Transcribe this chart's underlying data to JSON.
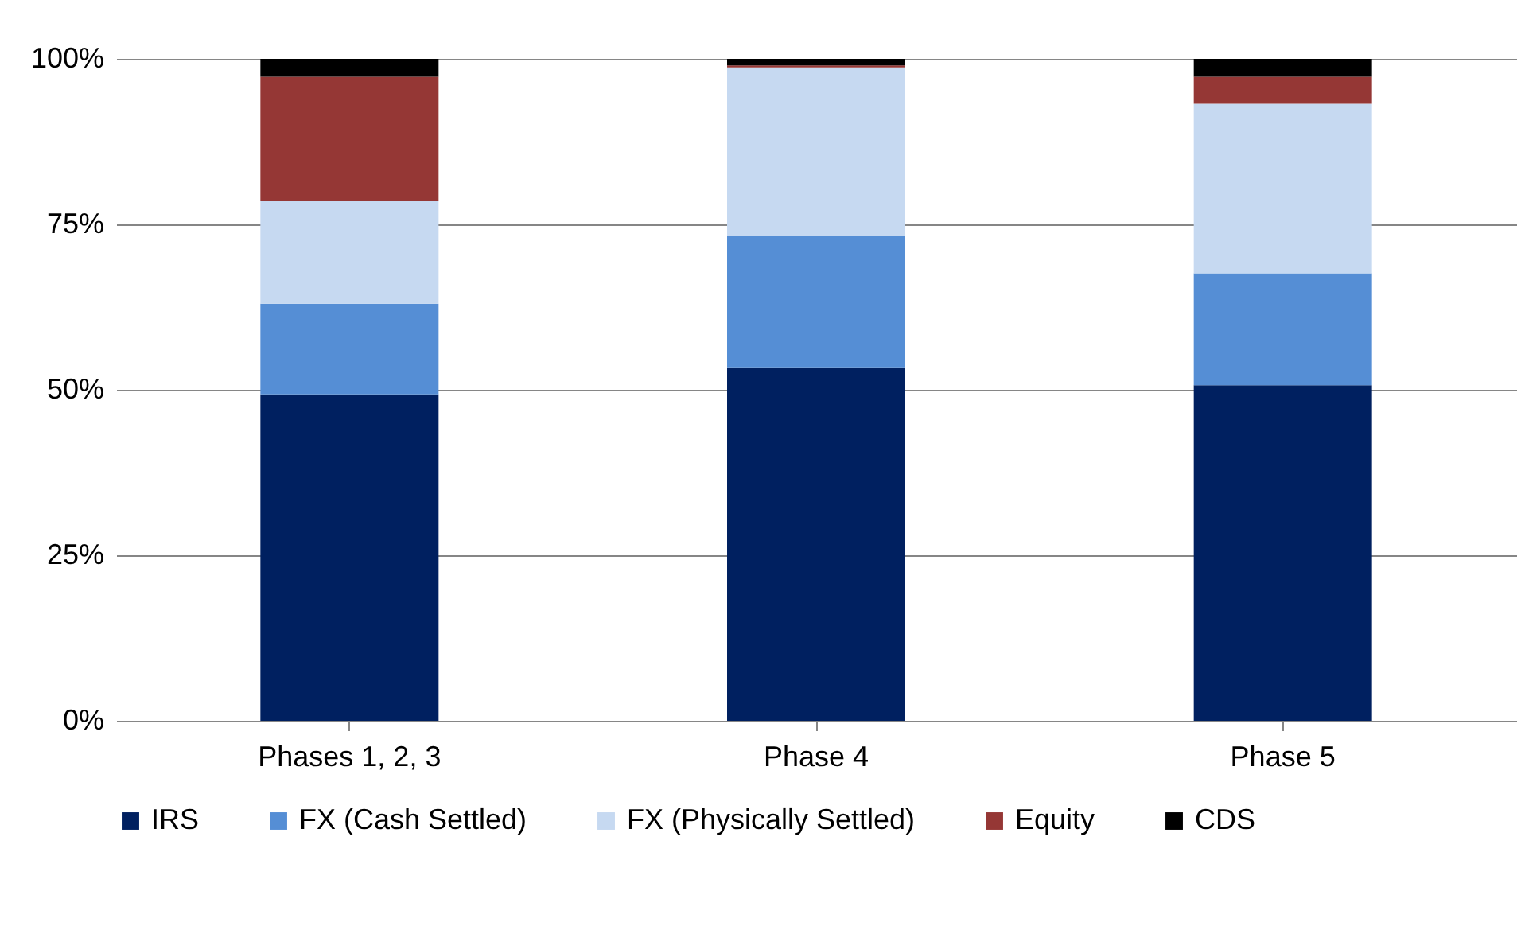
{
  "chart_data": {
    "type": "bar",
    "stacked": true,
    "categories": [
      "Phases 1, 2, 3",
      "Phase 4",
      "Phase 5"
    ],
    "series": [
      {
        "name": "IRS",
        "color": "#002060",
        "values": [
          49.3,
          53.4,
          50.7
        ]
      },
      {
        "name": "FX (Cash Settled)",
        "color": "#558ed5",
        "values": [
          13.7,
          19.8,
          16.9
        ]
      },
      {
        "name": "FX (Physically Settled)",
        "color": "#c6d9f1",
        "values": [
          15.5,
          25.5,
          25.6
        ]
      },
      {
        "name": "Equity",
        "color": "#953735",
        "values": [
          18.8,
          0.3,
          4.1
        ]
      },
      {
        "name": "CDS",
        "color": "#000000",
        "values": [
          2.7,
          1.0,
          2.7
        ]
      }
    ],
    "ylim": [
      0,
      100
    ],
    "yticks": [
      {
        "value": 0,
        "label": "0%"
      },
      {
        "value": 25,
        "label": "25%"
      },
      {
        "value": 50,
        "label": "50%"
      },
      {
        "value": 75,
        "label": "75%"
      },
      {
        "value": 100,
        "label": "100%"
      }
    ],
    "grid": "y",
    "legend": "bottom"
  }
}
